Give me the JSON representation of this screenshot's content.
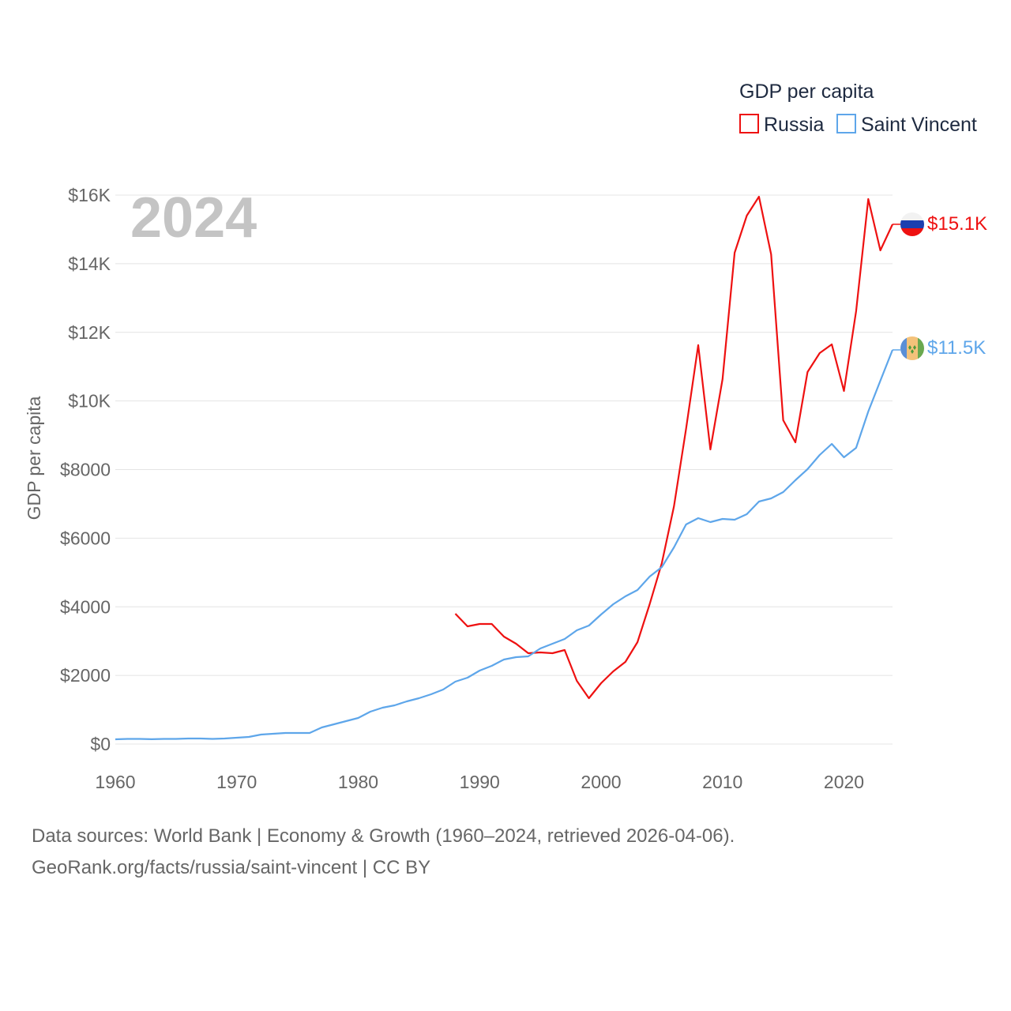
{
  "chart_data": {
    "type": "line",
    "year_label": "2024",
    "ylabel": "GDP per capita",
    "xlabel": "",
    "xlim": [
      1960,
      2024
    ],
    "ylim": [
      0,
      16000
    ],
    "grid": true,
    "legend": {
      "title": "GDP per capita",
      "placement": "top-right"
    },
    "x_ticks": [
      "1960",
      "1970",
      "1980",
      "1990",
      "2000",
      "2010",
      "2020"
    ],
    "y_ticks": [
      "$0",
      "$2000",
      "$4000",
      "$6000",
      "$8000",
      "$10K",
      "$12K",
      "$14K",
      "$16K"
    ],
    "series": [
      {
        "name": "Russia",
        "color": "#ee1111",
        "end_label": "$15.1K",
        "start_year": 1988,
        "values": [
          3799,
          3430,
          3499,
          3499,
          3131,
          2924,
          2647,
          2670,
          2647,
          2740,
          1842,
          1335,
          1773,
          2118,
          2394,
          2970,
          4075,
          5272,
          6929,
          9185,
          11626,
          8587,
          10636,
          14320,
          15402,
          15954,
          14273,
          9439,
          8795,
          10844,
          11396,
          11650,
          10291,
          12616,
          15885,
          14389,
          15149
        ]
      },
      {
        "name": "Saint Vincent",
        "color": "#5ea6ea",
        "end_label": "$11.5K",
        "start_year": 1960,
        "values": [
          138,
          150,
          150,
          140,
          150,
          150,
          160,
          160,
          150,
          160,
          184,
          207,
          276,
          299,
          322,
          322,
          322,
          483,
          575,
          668,
          760,
          944,
          1059,
          1128,
          1243,
          1335,
          1450,
          1588,
          1818,
          1934,
          2141,
          2279,
          2463,
          2532,
          2555,
          2786,
          2924,
          3062,
          3315,
          3453,
          3776,
          4075,
          4305,
          4489,
          4881,
          5157,
          5732,
          6400,
          6584,
          6469,
          6561,
          6538,
          6699,
          7068,
          7160,
          7344,
          7689,
          8012,
          8426,
          8749,
          8357,
          8633,
          9692,
          10590,
          11488
        ]
      }
    ]
  },
  "footer": {
    "line1": "Data sources: World Bank | Economy & Growth (1960–2024, retrieved 2026-04-06).",
    "line2": "GeoRank.org/facts/russia/saint-vincent | CC BY"
  }
}
